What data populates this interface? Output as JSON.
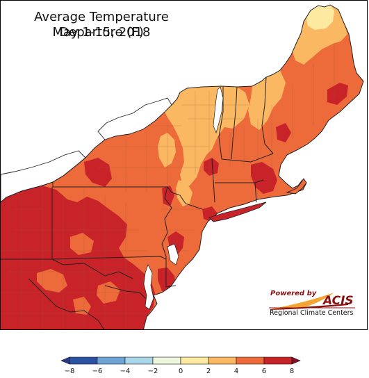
{
  "title": {
    "line1": "Average Temperature Departure (F)",
    "line2": "May 1-15, 2018"
  },
  "logo": {
    "powered_by": "Powered by",
    "brand": "ACIS",
    "subtitle": "Regional Climate Centers"
  },
  "legend": {
    "bins": [
      {
        "from": -8,
        "to": -6,
        "color": "#2c52a4"
      },
      {
        "from": -6,
        "to": -4,
        "color": "#6fa3d6"
      },
      {
        "from": -4,
        "to": -2,
        "color": "#a9d6e8"
      },
      {
        "from": -2,
        "to": 0,
        "color": "#eef7dc"
      },
      {
        "from": 0,
        "to": 2,
        "color": "#fde9a0"
      },
      {
        "from": 2,
        "to": 4,
        "color": "#fbb862"
      },
      {
        "from": 4,
        "to": 6,
        "color": "#ed6a3b"
      },
      {
        "from": 6,
        "to": 8,
        "color": "#c9232a"
      }
    ],
    "tick_labels": [
      "−8",
      "−6",
      "−4",
      "−2",
      "0",
      "2",
      "4",
      "6",
      "8"
    ],
    "below_min_color": "#2a3a8f",
    "above_max_color": "#8a0e2a"
  },
  "colors": {
    "background": "#ffffff",
    "water": "#ffffff",
    "boundary": "#222222",
    "county_line": "#9a5a3a"
  }
}
